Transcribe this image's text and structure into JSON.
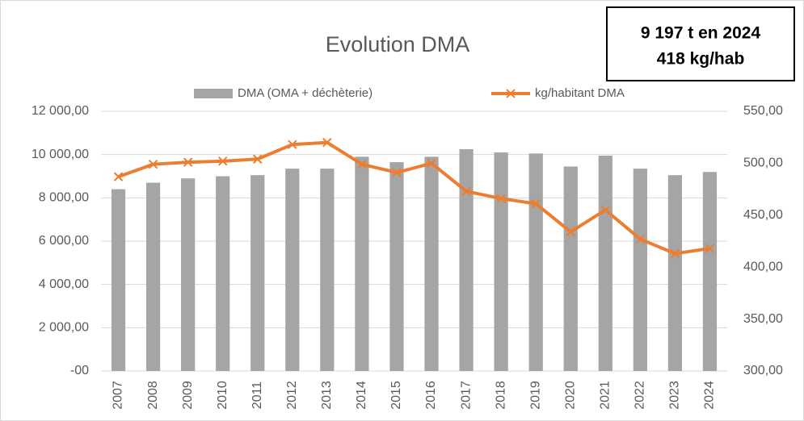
{
  "chart_data": {
    "type": "bar_line",
    "title": "Evolution DMA",
    "annotations": [
      "9 197 t en 2024",
      "418 kg/hab"
    ],
    "categories": [
      "2007",
      "2008",
      "2009",
      "2010",
      "2011",
      "2012",
      "2013",
      "2014",
      "2015",
      "2016",
      "2017",
      "2018",
      "2019",
      "2020",
      "2021",
      "2022",
      "2023",
      "2024"
    ],
    "series": [
      {
        "name": "DMA (OMA + déchèterie)",
        "type": "bar",
        "color": "#a5a5a5",
        "axis": "y",
        "values": [
          8400,
          8700,
          8900,
          9000,
          9050,
          9350,
          9350,
          9900,
          9650,
          9900,
          10250,
          10100,
          10050,
          9450,
          9950,
          9350,
          9050,
          9197
        ]
      },
      {
        "name": "kg/habitant DMA",
        "type": "line",
        "color": "#ed7d31",
        "axis": "y2",
        "values": [
          487,
          499,
          501,
          502,
          504,
          518,
          520,
          499,
          491,
          500,
          473,
          466,
          461,
          434,
          455,
          427,
          413,
          418
        ]
      }
    ],
    "ylim": [
      0,
      12000
    ],
    "yticks": [
      {
        "value": 0,
        "label": "-00"
      },
      {
        "value": 2000,
        "label": "2 000,00"
      },
      {
        "value": 4000,
        "label": "4 000,00"
      },
      {
        "value": 6000,
        "label": "6 000,00"
      },
      {
        "value": 8000,
        "label": "8 000,00"
      },
      {
        "value": 10000,
        "label": "10 000,00"
      },
      {
        "value": 12000,
        "label": "12 000,00"
      }
    ],
    "y2lim": [
      300,
      550
    ],
    "y2ticks": [
      {
        "value": 300,
        "label": "300,00"
      },
      {
        "value": 350,
        "label": "350,00"
      },
      {
        "value": 400,
        "label": "400,00"
      },
      {
        "value": 450,
        "label": "450,00"
      },
      {
        "value": 500,
        "label": "500,00"
      },
      {
        "value": 550,
        "label": "550,00"
      }
    ],
    "grid": true,
    "legend": "top"
  }
}
